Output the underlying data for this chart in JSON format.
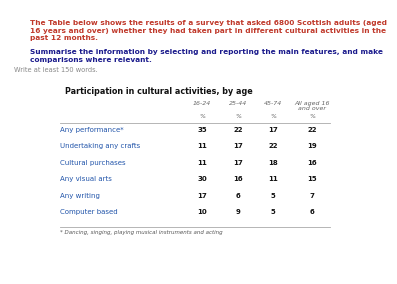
{
  "title_line1": "The Table below shows the results of a survey that asked 6800 Scottish adults (aged",
  "title_line2": "16 years and over) whether they had taken part in different cultural activities in the",
  "title_line3": "past 12 months.",
  "instruction_line1": "Summarise the information by selecting and reporting the main features, and make",
  "instruction_line2": "comparisons where relevant.",
  "write_text": "Write at least 150 words.",
  "table_title": "Participation in cultural activities, by age",
  "col_headers": [
    "16-24",
    "25-44",
    "45-74",
    "All aged 16\nand over"
  ],
  "col_unit": [
    "%",
    "%",
    "%",
    "%"
  ],
  "row_labels": [
    "Any performance*",
    "Undertaking any crafts",
    "Cultural purchases",
    "Any visual arts",
    "Any writing",
    "Computer based"
  ],
  "data": [
    [
      35,
      22,
      17,
      22
    ],
    [
      11,
      17,
      22,
      19
    ],
    [
      11,
      17,
      18,
      16
    ],
    [
      30,
      16,
      11,
      15
    ],
    [
      17,
      6,
      5,
      7
    ],
    [
      10,
      9,
      5,
      6
    ]
  ],
  "footnote": "* Dancing, singing, playing musical instruments and acting",
  "bg_color": "#ffffff",
  "title_color": "#c0392b",
  "instruction_color": "#1a1a8c",
  "write_color": "#888888",
  "table_title_color": "#111111",
  "header_color": "#666666",
  "row_label_color": "#2255aa",
  "data_color": "#111111",
  "line_color": "#aaaaaa",
  "footnote_color": "#555555"
}
